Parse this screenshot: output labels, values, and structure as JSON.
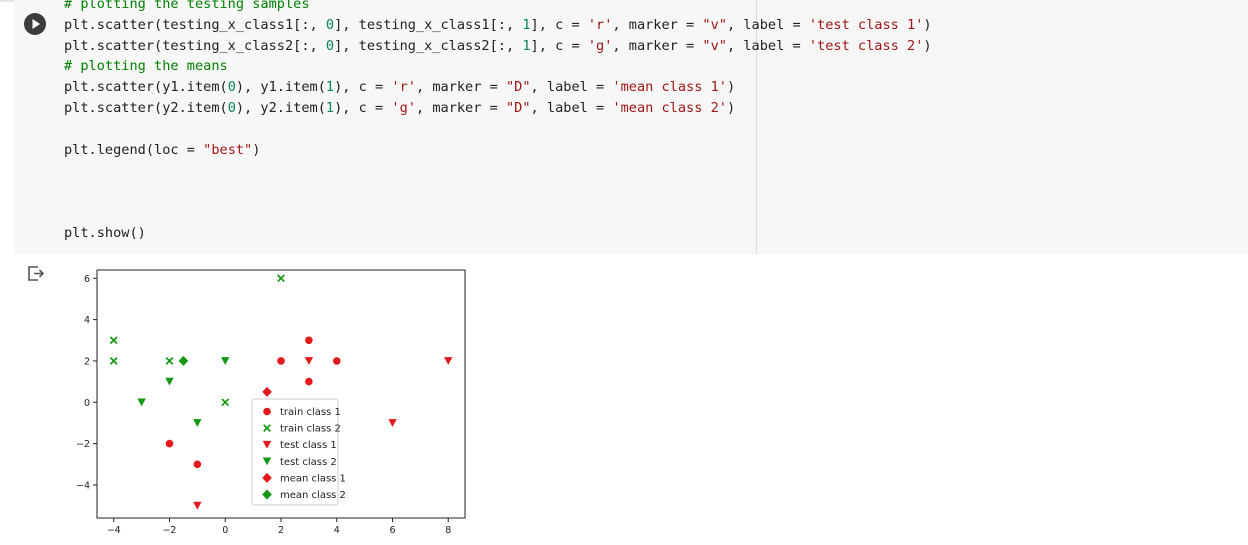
{
  "code_cell": {
    "lines": [
      {
        "parts": [
          [
            "cm",
            "# plotting the testing samples"
          ]
        ]
      },
      {
        "parts": [
          [
            "",
            "plt.scatter(testing_x_class1[:, "
          ],
          [
            "nm",
            "0"
          ],
          [
            "",
            "], testing_x_class1[:, "
          ],
          [
            "nm",
            "1"
          ],
          [
            "",
            "], c = "
          ],
          [
            "st",
            "'r'"
          ],
          [
            "",
            ", marker = "
          ],
          [
            "st",
            "\"v\""
          ],
          [
            "",
            ", label = "
          ],
          [
            "st",
            "'test class 1'"
          ],
          [
            "",
            ")"
          ]
        ]
      },
      {
        "parts": [
          [
            "",
            "plt.scatter(testing_x_class2[:, "
          ],
          [
            "nm",
            "0"
          ],
          [
            "",
            "], testing_x_class2[:, "
          ],
          [
            "nm",
            "1"
          ],
          [
            "",
            "], c = "
          ],
          [
            "st",
            "'g'"
          ],
          [
            "",
            ", marker = "
          ],
          [
            "st",
            "\"v\""
          ],
          [
            "",
            ", label = "
          ],
          [
            "st",
            "'test class 2'"
          ],
          [
            "",
            ")"
          ]
        ]
      },
      {
        "parts": [
          [
            "cm",
            "# plotting the means"
          ]
        ]
      },
      {
        "parts": [
          [
            "",
            "plt.scatter(y1.item("
          ],
          [
            "nm",
            "0"
          ],
          [
            "",
            "), y1.item("
          ],
          [
            "nm",
            "1"
          ],
          [
            "",
            "), c = "
          ],
          [
            "st",
            "'r'"
          ],
          [
            "",
            ", marker = "
          ],
          [
            "st",
            "\"D\""
          ],
          [
            "",
            ", label = "
          ],
          [
            "st",
            "'mean class 1'"
          ],
          [
            "",
            ")"
          ]
        ]
      },
      {
        "parts": [
          [
            "",
            "plt.scatter(y2.item("
          ],
          [
            "nm",
            "0"
          ],
          [
            "",
            "), y2.item("
          ],
          [
            "nm",
            "1"
          ],
          [
            "",
            "), c = "
          ],
          [
            "st",
            "'g'"
          ],
          [
            "",
            ", marker = "
          ],
          [
            "st",
            "\"D\""
          ],
          [
            "",
            ", label = "
          ],
          [
            "st",
            "'mean class 2'"
          ],
          [
            "",
            ")"
          ]
        ]
      },
      {
        "parts": []
      },
      {
        "parts": [
          [
            "",
            "plt.legend(loc = "
          ],
          [
            "st",
            "\"best\""
          ],
          [
            "",
            ")"
          ]
        ]
      },
      {
        "parts": []
      },
      {
        "parts": []
      },
      {
        "parts": []
      },
      {
        "parts": [
          [
            "",
            "plt.show()"
          ]
        ]
      }
    ]
  },
  "chart_data": {
    "type": "scatter",
    "xlim": [
      -4.6,
      8.6
    ],
    "ylim": [
      -5.6,
      6.4
    ],
    "xticks": [
      -4,
      -2,
      0,
      2,
      4,
      6,
      8
    ],
    "yticks": [
      -4,
      -2,
      0,
      2,
      4,
      6
    ],
    "grid": false,
    "legend_position": "lower-center",
    "series": [
      {
        "name": "train class 1",
        "color": "#e41a1a",
        "marker": "circle",
        "points": [
          [
            2,
            2
          ],
          [
            3,
            3
          ],
          [
            3,
            1
          ],
          [
            4,
            2
          ],
          [
            -2,
            -2
          ],
          [
            -1,
            -3
          ]
        ]
      },
      {
        "name": "train class 2",
        "color": "#119911",
        "marker": "x",
        "points": [
          [
            -4,
            3
          ],
          [
            -4,
            2
          ],
          [
            -2,
            2
          ],
          [
            2,
            6
          ],
          [
            0,
            0
          ]
        ]
      },
      {
        "name": "test class 1",
        "color": "#e41a1a",
        "marker": "triangle-down",
        "points": [
          [
            3,
            2
          ],
          [
            8,
            2
          ],
          [
            6,
            -1
          ],
          [
            -1,
            -5
          ]
        ]
      },
      {
        "name": "test class 2",
        "color": "#119911",
        "marker": "triangle-down",
        "points": [
          [
            0,
            2
          ],
          [
            -2,
            1
          ],
          [
            -3,
            0
          ],
          [
            -1,
            -1
          ]
        ]
      },
      {
        "name": "mean class 1",
        "color": "#e41a1a",
        "marker": "diamond",
        "points": [
          [
            1.5,
            0.5
          ]
        ]
      },
      {
        "name": "mean class 2",
        "color": "#119911",
        "marker": "diamond",
        "points": [
          [
            -1.5,
            2
          ]
        ]
      }
    ]
  }
}
